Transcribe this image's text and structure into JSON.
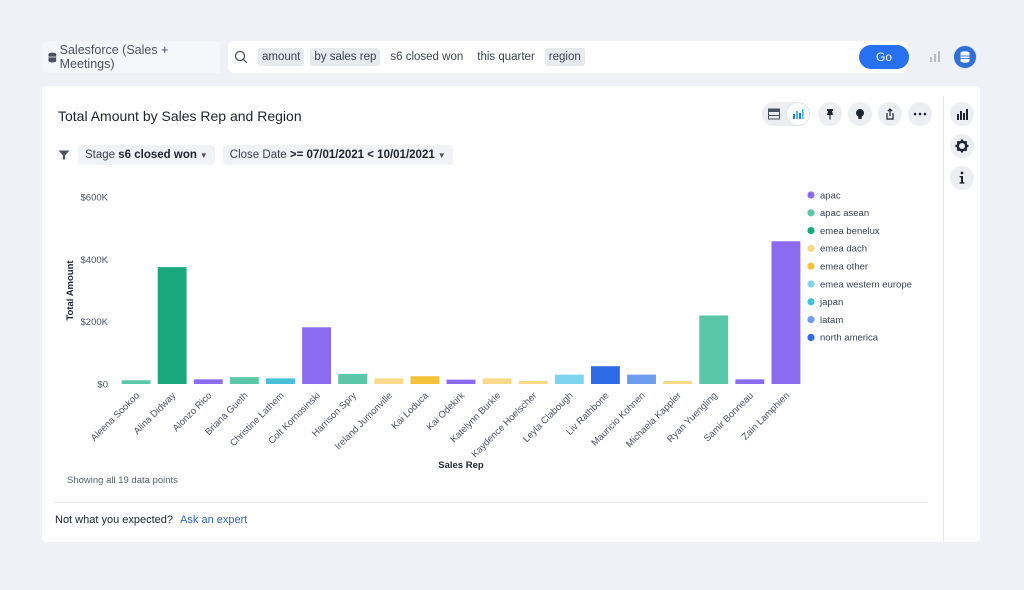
{
  "search": {
    "source": "Salesforce (Sales + Meetings)",
    "tokens": [
      {
        "text": "amount",
        "tagged": true
      },
      {
        "text": "by sales rep",
        "tagged": true
      },
      {
        "text": "s6 closed won",
        "tagged": false
      },
      {
        "text": "this quarter",
        "tagged": false
      },
      {
        "text": "region",
        "tagged": true
      }
    ],
    "clear_label": "×",
    "go_label": "Go"
  },
  "card": {
    "title": "Total Amount by Sales Rep and Region",
    "filters": [
      {
        "label": "Stage",
        "value": "s6 closed won"
      },
      {
        "label": "Close Date",
        "value": ">= 07/01/2021 < 10/01/2021"
      }
    ],
    "footer_note": "Showing all 19 data points",
    "feedback_text": "Not what you expected?",
    "feedback_link": "Ask an expert"
  },
  "colors": {
    "apac": "#8b6cf0",
    "apac asean": "#5ac8a8",
    "emea benelux": "#1aa97c",
    "emea dach": "#fad88a",
    "emea other": "#f4c23a",
    "emea western europe": "#7ed3ee",
    "japan": "#46bfd9",
    "latam": "#6e9df0",
    "north america": "#2e6be5",
    "accent": "#2770ef"
  },
  "chart_data": {
    "type": "bar",
    "title": "Total Amount by Sales Rep and Region",
    "xlabel": "Sales Rep",
    "ylabel": "Total Amount",
    "ylim": [
      0,
      600000
    ],
    "yticks": [
      {
        "value": 0,
        "label": "$0"
      },
      {
        "value": 200000,
        "label": "$200K"
      },
      {
        "value": 400000,
        "label": "$400K"
      },
      {
        "value": 600000,
        "label": "$600K"
      }
    ],
    "legend": [
      "apac",
      "apac asean",
      "emea benelux",
      "emea dach",
      "emea other",
      "emea western europe",
      "japan",
      "latam",
      "north america"
    ],
    "legend_position": "right",
    "bars": [
      {
        "rep": "Aleena Sookoo",
        "region": "apac asean",
        "value": 12000
      },
      {
        "rep": "Alina Didway",
        "region": "emea benelux",
        "value": 375000
      },
      {
        "rep": "Alonzo Rico",
        "region": "apac",
        "value": 15000
      },
      {
        "rep": "Briana Gueth",
        "region": "apac asean",
        "value": 22000
      },
      {
        "rep": "Christine Lathem",
        "region": "japan",
        "value": 18000
      },
      {
        "rep": "Colt Kornosinski",
        "region": "apac",
        "value": 182000
      },
      {
        "rep": "Harrison Spry",
        "region": "apac asean",
        "value": 32000
      },
      {
        "rep": "Ireland Jumonville",
        "region": "emea dach",
        "value": 18000
      },
      {
        "rep": "Kai Loduca",
        "region": "emea other",
        "value": 25000
      },
      {
        "rep": "Kai Odekirk",
        "region": "apac",
        "value": 14000
      },
      {
        "rep": "Katelynn Burkle",
        "region": "emea dach",
        "value": 18000
      },
      {
        "rep": "Kaydence Hoelscher",
        "region": "emea dach",
        "value": 10000
      },
      {
        "rep": "Leyla Clabough",
        "region": "emea western europe",
        "value": 30000
      },
      {
        "rep": "Liv Rathbone",
        "region": "north america",
        "value": 57000
      },
      {
        "rep": "Mauricio Kohnen",
        "region": "latam",
        "value": 30000
      },
      {
        "rep": "Michaela Kappler",
        "region": "emea dach",
        "value": 10000
      },
      {
        "rep": "Ryan Yuengling",
        "region": "apac asean",
        "value": 220000
      },
      {
        "rep": "Samir Bonneau",
        "region": "apac",
        "value": 15000
      },
      {
        "rep": "Zain Lamphien",
        "region": "apac",
        "value": 458000
      }
    ]
  }
}
